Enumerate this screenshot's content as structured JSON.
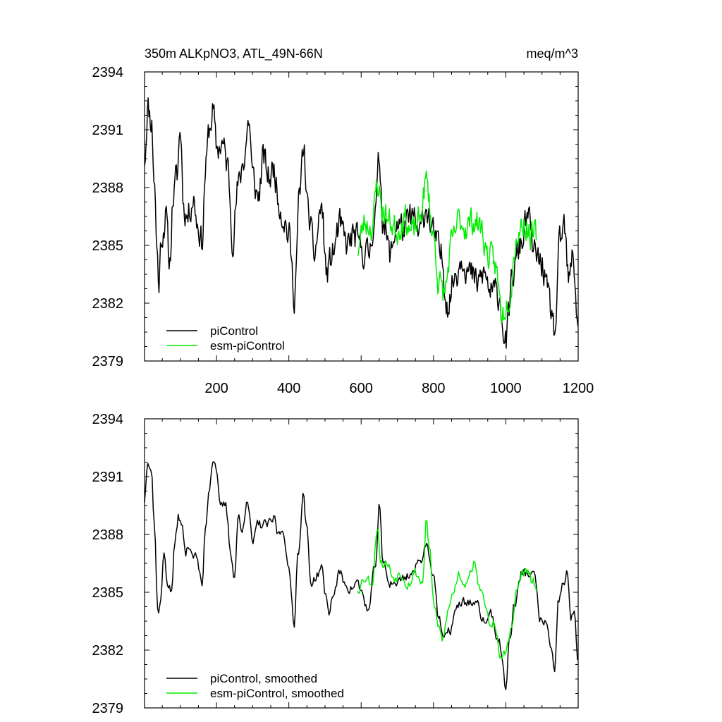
{
  "chart_data": [
    {
      "type": "line",
      "title_left": "350m ALKpNO3, ATL_49N-66N",
      "title_right": "meq/m^3",
      "xlabel": "",
      "ylabel": "",
      "xlim": [
        1,
        1200
      ],
      "ylim": [
        2379,
        2394
      ],
      "x_ticks": [
        200,
        400,
        600,
        800,
        1000,
        1200
      ],
      "y_ticks": [
        2379,
        2382,
        2385,
        2388,
        2391,
        2394
      ],
      "legend_position": "bottom-left",
      "series": [
        {
          "name": "piControl",
          "color": "#000000",
          "x_start": 1,
          "x_end": 1200,
          "knots": [
            [
              1,
              2389.5
            ],
            [
              10,
              2392.2
            ],
            [
              20,
              2391.5
            ],
            [
              28,
              2388.5
            ],
            [
              35,
              2385
            ],
            [
              40,
              2383
            ],
            [
              48,
              2385.5
            ],
            [
              60,
              2386.5
            ],
            [
              70,
              2384
            ],
            [
              80,
              2387.5
            ],
            [
              90,
              2388.5
            ],
            [
              100,
              2391
            ],
            [
              110,
              2387
            ],
            [
              120,
              2386.5
            ],
            [
              135,
              2387.5
            ],
            [
              150,
              2386
            ],
            [
              160,
              2385.2
            ],
            [
              170,
              2389
            ],
            [
              180,
              2391
            ],
            [
              190,
              2392
            ],
            [
              200,
              2390
            ],
            [
              215,
              2390.3
            ],
            [
              230,
              2389.2
            ],
            [
              245,
              2385.5
            ],
            [
              260,
              2388
            ],
            [
              275,
              2389.5
            ],
            [
              290,
              2391.5
            ],
            [
              300,
              2388.5
            ],
            [
              315,
              2387.5
            ],
            [
              330,
              2389.5
            ],
            [
              345,
              2388.5
            ],
            [
              360,
              2389
            ],
            [
              370,
              2387.5
            ],
            [
              385,
              2386.5
            ],
            [
              400,
              2385.5
            ],
            [
              415,
              2382.5
            ],
            [
              430,
              2387.5
            ],
            [
              440,
              2390
            ],
            [
              455,
              2386.5
            ],
            [
              470,
              2384.5
            ],
            [
              490,
              2387
            ],
            [
              505,
              2383.5
            ],
            [
              520,
              2384.5
            ],
            [
              540,
              2386
            ],
            [
              560,
              2385
            ],
            [
              580,
              2385.5
            ],
            [
              600,
              2384.8
            ],
            [
              620,
              2384.5
            ],
            [
              640,
              2386.8
            ],
            [
              650,
              2389.5
            ],
            [
              660,
              2386.5
            ],
            [
              680,
              2384.5
            ],
            [
              700,
              2386.2
            ],
            [
              720,
              2385.8
            ],
            [
              740,
              2386.5
            ],
            [
              760,
              2385.5
            ],
            [
              780,
              2387
            ],
            [
              800,
              2385.5
            ],
            [
              820,
              2384.5
            ],
            [
              840,
              2382
            ],
            [
              860,
              2383.5
            ],
            [
              880,
              2384.5
            ],
            [
              900,
              2383.5
            ],
            [
              920,
              2383
            ],
            [
              940,
              2383.5
            ],
            [
              960,
              2382.5
            ],
            [
              980,
              2382.5
            ],
            [
              1000,
              2380
            ],
            [
              1020,
              2383.5
            ],
            [
              1040,
              2385
            ],
            [
              1060,
              2386.5
            ],
            [
              1080,
              2384.5
            ],
            [
              1100,
              2384
            ],
            [
              1120,
              2382
            ],
            [
              1135,
              2380.5
            ],
            [
              1150,
              2385
            ],
            [
              1160,
              2386
            ],
            [
              1175,
              2383
            ],
            [
              1185,
              2384.5
            ],
            [
              1200,
              2381
            ]
          ],
          "noise_amp": 1.3,
          "seed": 11
        },
        {
          "name": "esm-piControl",
          "color": "#00ee00",
          "x_start": 590,
          "x_end": 1085,
          "knots": [
            [
              590,
              2384.8
            ],
            [
              610,
              2386.2
            ],
            [
              630,
              2386
            ],
            [
              645,
              2388.2
            ],
            [
              660,
              2386.8
            ],
            [
              680,
              2386.2
            ],
            [
              700,
              2385.8
            ],
            [
              720,
              2386.5
            ],
            [
              740,
              2385.6
            ],
            [
              760,
              2386.2
            ],
            [
              780,
              2388.3
            ],
            [
              800,
              2385.5
            ],
            [
              815,
              2383
            ],
            [
              830,
              2382.5
            ],
            [
              850,
              2385
            ],
            [
              870,
              2386.3
            ],
            [
              890,
              2386
            ],
            [
              910,
              2386.3
            ],
            [
              930,
              2386
            ],
            [
              950,
              2384.5
            ],
            [
              970,
              2384
            ],
            [
              990,
              2381.5
            ],
            [
              1010,
              2382.5
            ],
            [
              1030,
              2385.5
            ],
            [
              1050,
              2386.2
            ],
            [
              1070,
              2385.5
            ],
            [
              1085,
              2385.5
            ]
          ],
          "noise_amp": 1.2,
          "seed": 23
        }
      ]
    },
    {
      "type": "line",
      "title_left": "",
      "title_right": "",
      "xlabel": "",
      "ylabel": "",
      "xlim": [
        1,
        1200
      ],
      "ylim": [
        2379,
        2394
      ],
      "x_ticks": [
        200,
        400,
        600,
        800,
        1000,
        1200
      ],
      "y_ticks": [
        2379,
        2382,
        2385,
        2388,
        2391,
        2394
      ],
      "legend_position": "bottom-left",
      "series": [
        {
          "name": "piControl, smoothed",
          "color": "#000000",
          "x_start": 1,
          "x_end": 1200,
          "knots": [
            [
              1,
              2389.8
            ],
            [
              10,
              2392
            ],
            [
              20,
              2391.5
            ],
            [
              28,
              2388.5
            ],
            [
              38,
              2384
            ],
            [
              45,
              2384.5
            ],
            [
              55,
              2387
            ],
            [
              65,
              2385.5
            ],
            [
              75,
              2385
            ],
            [
              85,
              2387.5
            ],
            [
              95,
              2389
            ],
            [
              105,
              2388.3
            ],
            [
              115,
              2387
            ],
            [
              125,
              2387.5
            ],
            [
              135,
              2387
            ],
            [
              145,
              2386.8
            ],
            [
              160,
              2385.3
            ],
            [
              170,
              2388.5
            ],
            [
              180,
              2390.5
            ],
            [
              190,
              2392
            ],
            [
              200,
              2391.5
            ],
            [
              210,
              2389.3
            ],
            [
              225,
              2389.5
            ],
            [
              240,
              2387
            ],
            [
              250,
              2385.8
            ],
            [
              260,
              2389
            ],
            [
              270,
              2388
            ],
            [
              285,
              2390
            ],
            [
              300,
              2387.5
            ],
            [
              315,
              2388.5
            ],
            [
              330,
              2388.5
            ],
            [
              345,
              2388.5
            ],
            [
              360,
              2388.8
            ],
            [
              370,
              2388
            ],
            [
              385,
              2388.3
            ],
            [
              400,
              2386
            ],
            [
              415,
              2383.5
            ],
            [
              425,
              2387
            ],
            [
              440,
              2390
            ],
            [
              450,
              2388.2
            ],
            [
              460,
              2385.5
            ],
            [
              475,
              2385.8
            ],
            [
              490,
              2386.3
            ],
            [
              500,
              2385
            ],
            [
              510,
              2384
            ],
            [
              525,
              2385
            ],
            [
              540,
              2386
            ],
            [
              555,
              2385.5
            ],
            [
              570,
              2385.2
            ],
            [
              590,
              2385.5
            ],
            [
              600,
              2385
            ],
            [
              620,
              2384
            ],
            [
              640,
              2386.5
            ],
            [
              650,
              2389.5
            ],
            [
              660,
              2386.5
            ],
            [
              680,
              2385.5
            ],
            [
              700,
              2385.5
            ],
            [
              720,
              2385.8
            ],
            [
              740,
              2386
            ],
            [
              760,
              2386.5
            ],
            [
              780,
              2387.5
            ],
            [
              800,
              2386
            ],
            [
              815,
              2383.5
            ],
            [
              830,
              2382.5
            ],
            [
              845,
              2383
            ],
            [
              860,
              2384
            ],
            [
              880,
              2384.5
            ],
            [
              900,
              2384.5
            ],
            [
              920,
              2384.3
            ],
            [
              940,
              2383.5
            ],
            [
              960,
              2383.8
            ],
            [
              980,
              2382.5
            ],
            [
              990,
              2381.5
            ],
            [
              1000,
              2380
            ],
            [
              1010,
              2382.5
            ],
            [
              1025,
              2384.5
            ],
            [
              1045,
              2386
            ],
            [
              1060,
              2386
            ],
            [
              1080,
              2385.8
            ],
            [
              1095,
              2383.5
            ],
            [
              1110,
              2383.5
            ],
            [
              1125,
              2382
            ],
            [
              1135,
              2380.6
            ],
            [
              1145,
              2384.5
            ],
            [
              1160,
              2385.5
            ],
            [
              1170,
              2386
            ],
            [
              1180,
              2383.5
            ],
            [
              1190,
              2384
            ],
            [
              1200,
              2381.3
            ]
          ],
          "noise_amp": 0.45,
          "seed": 37
        },
        {
          "name": "esm-piControl, smoothed",
          "color": "#00ee00",
          "x_start": 590,
          "x_end": 1085,
          "knots": [
            [
              590,
              2385.2
            ],
            [
              610,
              2385.8
            ],
            [
              630,
              2385.5
            ],
            [
              645,
              2388.5
            ],
            [
              655,
              2386.5
            ],
            [
              670,
              2386.5
            ],
            [
              690,
              2385.8
            ],
            [
              710,
              2386
            ],
            [
              730,
              2385.5
            ],
            [
              750,
              2386
            ],
            [
              770,
              2385.5
            ],
            [
              780,
              2388.8
            ],
            [
              790,
              2387
            ],
            [
              800,
              2384.5
            ],
            [
              815,
              2383
            ],
            [
              825,
              2382.5
            ],
            [
              840,
              2384
            ],
            [
              855,
              2385
            ],
            [
              870,
              2386
            ],
            [
              885,
              2385.5
            ],
            [
              900,
              2386
            ],
            [
              910,
              2386.5
            ],
            [
              925,
              2385.5
            ],
            [
              940,
              2384.5
            ],
            [
              955,
              2383.5
            ],
            [
              965,
              2383.5
            ],
            [
              975,
              2382.5
            ],
            [
              985,
              2381.5
            ],
            [
              1000,
              2382
            ],
            [
              1015,
              2383
            ],
            [
              1030,
              2385
            ],
            [
              1045,
              2386
            ],
            [
              1060,
              2386
            ],
            [
              1075,
              2385.5
            ],
            [
              1085,
              2385.2
            ]
          ],
          "noise_amp": 0.5,
          "seed": 53
        }
      ]
    }
  ]
}
